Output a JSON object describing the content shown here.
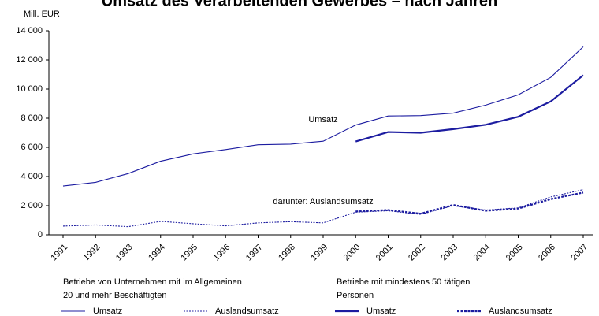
{
  "chart_data": {
    "type": "line",
    "title": "Umsatz des Verarbeitenden Gewerbes – nach Jahren",
    "y_label": "Mill. EUR",
    "annotations": [
      "Umsatz",
      "darunter: Auslandsumsatz"
    ],
    "categories": [
      "1991",
      "1992",
      "1993",
      "1994",
      "1995",
      "1996",
      "1997",
      "1998",
      "1999",
      "2000",
      "2001",
      "2002",
      "2003",
      "2004",
      "2005",
      "2006",
      "2007"
    ],
    "ylim": [
      0,
      14000
    ],
    "yticks": [
      0,
      {
        "value": 2000,
        "label": "2 000"
      },
      {
        "value": 4000,
        "label": "4 000"
      },
      {
        "value": 6000,
        "label": "6 000"
      },
      {
        "value": 8000,
        "label": "8 000"
      },
      {
        "value": 10000,
        "label": "10 000"
      },
      {
        "value": 12000,
        "label": "12 000"
      },
      {
        "value": 14000,
        "label": "14 000"
      }
    ],
    "legend_groups": [
      [
        "Betriebe von Unternehmen mit im Allgemeinen",
        "20 und mehr Beschäftigten"
      ],
      [
        "Betriebe mit mindestens 50 tätigen",
        "Personen"
      ]
    ],
    "series": [
      {
        "name": "Umsatz",
        "color": "#1c1ca0",
        "width": 1,
        "style": "solid",
        "values": [
          3350,
          3600,
          4200,
          5050,
          5550,
          5850,
          6180,
          6220,
          6420,
          7530,
          8150,
          8180,
          8350,
          8900,
          9600,
          10800,
          12900
        ]
      },
      {
        "name": "Auslandsumsatz",
        "color": "#1c1ca0",
        "width": 1,
        "style": "dotted",
        "values": [
          600,
          680,
          560,
          920,
          760,
          620,
          820,
          900,
          820,
          1550,
          1650,
          1400,
          2000,
          1700,
          1850,
          2600,
          3100
        ]
      },
      {
        "name": "Umsatz",
        "color": "#1c1ca0",
        "width": 2,
        "style": "solid",
        "values": [
          null,
          null,
          null,
          null,
          null,
          null,
          null,
          null,
          null,
          6400,
          7050,
          7000,
          7250,
          7550,
          8100,
          9150,
          10950
        ]
      },
      {
        "name": "Auslandsumsatz",
        "color": "#1c1ca0",
        "width": 2,
        "style": "dotted",
        "values": [
          null,
          null,
          null,
          null,
          null,
          null,
          null,
          null,
          null,
          1600,
          1700,
          1450,
          2050,
          1650,
          1800,
          2450,
          2900
        ]
      }
    ]
  }
}
